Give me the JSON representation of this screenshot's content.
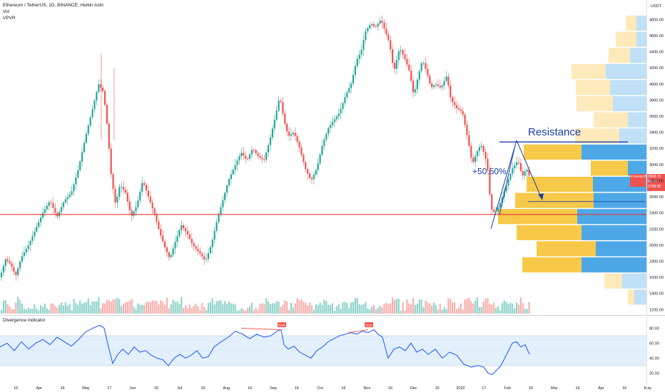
{
  "header": {
    "title": "Ethereum / TetherUS, 1D, BINANCE, Heikin Ashi",
    "vol_label": "Vol",
    "vpvr_label": "VPVR",
    "currency": "USDT",
    "indicator_label": "Divergence Indicator",
    "last_price_label": "ETHUSDT",
    "last_price": "2838.70",
    "countdown": "08:45",
    "secondary_price": "2768.96"
  },
  "annotations": {
    "resistance": "Resistance",
    "gain": "+50.50%",
    "bear_tag": "Bear"
  },
  "colors": {
    "up": "#26a69a",
    "down": "#ef5350",
    "support": "#e53935",
    "resistance": "#1a3ea8",
    "vpvr_yellow": "#f7c948",
    "vpvr_yellow_light": "#fde9b9",
    "vpvr_blue": "#4ea8e8",
    "vpvr_blue_light": "#bfe0f7",
    "osc_line": "#2962ff",
    "osc_band": "#e3f0fc",
    "bear_label": "#ef5350"
  },
  "chart_data": [
    {
      "type": "candlestick",
      "title": "Ethereum / TetherUS, 1D, BINANCE, Heikin Ashi",
      "y_axis": {
        "ticks": [
          1200,
          1400,
          1600,
          1800,
          2000,
          2200,
          2400,
          2600,
          2800,
          3000,
          3200,
          3400,
          3600,
          3800,
          4000,
          4200,
          4400,
          4600,
          4800
        ],
        "tick_labels": [
          "1200.00",
          "1400.00",
          "1600.00",
          "1800.00",
          "2000.00",
          "2200.00",
          "2400.00",
          "2600.00",
          "2800.00",
          "3000.00",
          "3200.00",
          "3400.00",
          "3600.00",
          "3800.00",
          "4000.00",
          "4200.00",
          "4400.00",
          "4600.00",
          "4800.00"
        ],
        "scale": "linear",
        "ylim": [
          1150,
          4900
        ]
      },
      "x_axis": {
        "tick_labels": [
          "16",
          "Apr",
          "16",
          "May",
          "17",
          "Jun",
          "16",
          "Jul",
          "16",
          "Aug",
          "16",
          "Sep",
          "16",
          "Oct",
          "16",
          "Nov",
          "16",
          "Dec",
          "16",
          "2022",
          "17",
          "Feb",
          "16",
          "Mar",
          "16",
          "Apr",
          "16",
          "May"
        ]
      },
      "close_path": [
        [
          0,
          1600
        ],
        [
          8,
          1830
        ],
        [
          15,
          1760
        ],
        [
          22,
          1620
        ],
        [
          30,
          1850
        ],
        [
          40,
          2000
        ],
        [
          50,
          2200
        ],
        [
          60,
          2400
        ],
        [
          70,
          2550
        ],
        [
          80,
          2350
        ],
        [
          90,
          2550
        ],
        [
          100,
          2650
        ],
        [
          110,
          2950
        ],
        [
          120,
          3350
        ],
        [
          130,
          3700
        ],
        [
          138,
          4000
        ],
        [
          145,
          3900
        ],
        [
          150,
          3500
        ],
        [
          156,
          2850
        ],
        [
          162,
          2500
        ],
        [
          168,
          2750
        ],
        [
          176,
          2650
        ],
        [
          184,
          2350
        ],
        [
          192,
          2500
        ],
        [
          200,
          2800
        ],
        [
          208,
          2600
        ],
        [
          216,
          2400
        ],
        [
          224,
          2150
        ],
        [
          232,
          1950
        ],
        [
          238,
          1830
        ],
        [
          246,
          2050
        ],
        [
          254,
          2250
        ],
        [
          262,
          2150
        ],
        [
          270,
          2000
        ],
        [
          280,
          1900
        ],
        [
          288,
          1800
        ],
        [
          296,
          2000
        ],
        [
          304,
          2300
        ],
        [
          312,
          2550
        ],
        [
          320,
          2800
        ],
        [
          330,
          3000
        ],
        [
          338,
          3150
        ],
        [
          346,
          3050
        ],
        [
          354,
          3200
        ],
        [
          362,
          3100
        ],
        [
          370,
          3050
        ],
        [
          378,
          3300
        ],
        [
          386,
          3600
        ],
        [
          392,
          3850
        ],
        [
          398,
          3550
        ],
        [
          404,
          3350
        ],
        [
          412,
          3400
        ],
        [
          420,
          3200
        ],
        [
          428,
          2950
        ],
        [
          436,
          2800
        ],
        [
          444,
          2950
        ],
        [
          452,
          3250
        ],
        [
          460,
          3450
        ],
        [
          468,
          3550
        ],
        [
          476,
          3650
        ],
        [
          484,
          3850
        ],
        [
          492,
          4000
        ],
        [
          500,
          4300
        ],
        [
          506,
          4400
        ],
        [
          512,
          4650
        ],
        [
          520,
          4750
        ],
        [
          526,
          4700
        ],
        [
          534,
          4800
        ],
        [
          540,
          4650
        ],
        [
          546,
          4500
        ],
        [
          552,
          4150
        ],
        [
          560,
          4450
        ],
        [
          568,
          4300
        ],
        [
          574,
          4150
        ],
        [
          580,
          3850
        ],
        [
          586,
          4100
        ],
        [
          592,
          4300
        ],
        [
          598,
          4150
        ],
        [
          604,
          3950
        ],
        [
          610,
          4000
        ],
        [
          618,
          3950
        ],
        [
          626,
          4100
        ],
        [
          632,
          3800
        ],
        [
          640,
          3700
        ],
        [
          648,
          3650
        ],
        [
          656,
          3300
        ],
        [
          662,
          3000
        ],
        [
          668,
          3150
        ],
        [
          674,
          3250
        ],
        [
          680,
          3100
        ],
        [
          684,
          2900
        ],
        [
          688,
          2450
        ],
        [
          694,
          2400
        ],
        [
          700,
          2500
        ],
        [
          710,
          2750
        ],
        [
          718,
          2950
        ],
        [
          726,
          3050
        ],
        [
          732,
          2850
        ],
        [
          738,
          2950
        ],
        [
          744,
          2800
        ]
      ],
      "volume_profile_rows": [
        {
          "price": 4750,
          "up": 15,
          "down": 14
        },
        {
          "price": 4550,
          "up": 29,
          "down": 14
        },
        {
          "price": 4350,
          "up": 30,
          "down": 23
        },
        {
          "price": 4150,
          "up": 48,
          "down": 57
        },
        {
          "price": 3950,
          "up": 48,
          "down": 51
        },
        {
          "price": 3750,
          "up": 51,
          "down": 47
        },
        {
          "price": 3550,
          "up": 48,
          "down": 26
        },
        {
          "price": 3350,
          "up": 62,
          "down": 38
        },
        {
          "price": 3150,
          "up": 81,
          "down": 91
        },
        {
          "price": 2950,
          "up": 52,
          "down": 26
        },
        {
          "price": 2750,
          "up": 93,
          "down": 75
        },
        {
          "price": 2550,
          "up": 110,
          "down": 74
        },
        {
          "price": 2350,
          "up": 111,
          "down": 97
        },
        {
          "price": 2150,
          "up": 91,
          "down": 91
        },
        {
          "price": 1950,
          "up": 83,
          "down": 71
        },
        {
          "price": 1750,
          "up": 83,
          "down": 91
        },
        {
          "price": 1550,
          "up": 25,
          "down": 34
        },
        {
          "price": 1350,
          "up": 9,
          "down": 17
        }
      ],
      "support_level": 2380,
      "resistance_level": 3280,
      "notes_text": [
        "Resistance",
        "+50.50%"
      ]
    },
    {
      "type": "line",
      "title": "Divergence Indicator",
      "y_axis": {
        "ticks": [
          20,
          40,
          60,
          80
        ],
        "tick_labels": [
          "20.00",
          "40.00",
          "60.00",
          "80.00"
        ],
        "ylim": [
          10,
          90
        ]
      },
      "band": [
        30,
        70
      ],
      "midline": 50,
      "values_path": [
        [
          0,
          55
        ],
        [
          10,
          60
        ],
        [
          20,
          50
        ],
        [
          30,
          62
        ],
        [
          40,
          52
        ],
        [
          50,
          60
        ],
        [
          60,
          65
        ],
        [
          70,
          58
        ],
        [
          80,
          68
        ],
        [
          90,
          62
        ],
        [
          100,
          56
        ],
        [
          110,
          65
        ],
        [
          120,
          75
        ],
        [
          130,
          80
        ],
        [
          140,
          84
        ],
        [
          146,
          80
        ],
        [
          152,
          55
        ],
        [
          158,
          33
        ],
        [
          165,
          45
        ],
        [
          172,
          52
        ],
        [
          180,
          45
        ],
        [
          188,
          55
        ],
        [
          196,
          48
        ],
        [
          204,
          50
        ],
        [
          212,
          44
        ],
        [
          220,
          40
        ],
        [
          228,
          38
        ],
        [
          236,
          30
        ],
        [
          244,
          40
        ],
        [
          252,
          45
        ],
        [
          260,
          40
        ],
        [
          268,
          44
        ],
        [
          276,
          50
        ],
        [
          284,
          40
        ],
        [
          292,
          42
        ],
        [
          300,
          55
        ],
        [
          310,
          62
        ],
        [
          320,
          68
        ],
        [
          330,
          76
        ],
        [
          340,
          72
        ],
        [
          350,
          66
        ],
        [
          360,
          72
        ],
        [
          370,
          68
        ],
        [
          380,
          70
        ],
        [
          388,
          76
        ],
        [
          394,
          78
        ],
        [
          398,
          58
        ],
        [
          404,
          52
        ],
        [
          412,
          56
        ],
        [
          420,
          48
        ],
        [
          428,
          44
        ],
        [
          436,
          40
        ],
        [
          444,
          50
        ],
        [
          452,
          55
        ],
        [
          460,
          62
        ],
        [
          468,
          66
        ],
        [
          476,
          70
        ],
        [
          484,
          72
        ],
        [
          492,
          74
        ],
        [
          500,
          72
        ],
        [
          508,
          76
        ],
        [
          516,
          74
        ],
        [
          524,
          78
        ],
        [
          530,
          72
        ],
        [
          536,
          68
        ],
        [
          544,
          40
        ],
        [
          552,
          52
        ],
        [
          560,
          55
        ],
        [
          568,
          50
        ],
        [
          576,
          60
        ],
        [
          584,
          48
        ],
        [
          592,
          52
        ],
        [
          600,
          45
        ],
        [
          610,
          52
        ],
        [
          620,
          40
        ],
        [
          630,
          48
        ],
        [
          640,
          44
        ],
        [
          650,
          32
        ],
        [
          660,
          28
        ],
        [
          670,
          30
        ],
        [
          678,
          28
        ],
        [
          684,
          20
        ],
        [
          690,
          18
        ],
        [
          696,
          24
        ],
        [
          702,
          30
        ],
        [
          710,
          45
        ],
        [
          718,
          60
        ],
        [
          724,
          62
        ],
        [
          730,
          55
        ],
        [
          736,
          58
        ],
        [
          742,
          45
        ]
      ],
      "divergence_marks": [
        {
          "label": "Bear",
          "x_index": 394
        },
        {
          "label": "Bear",
          "x_index": 516
        }
      ]
    }
  ]
}
